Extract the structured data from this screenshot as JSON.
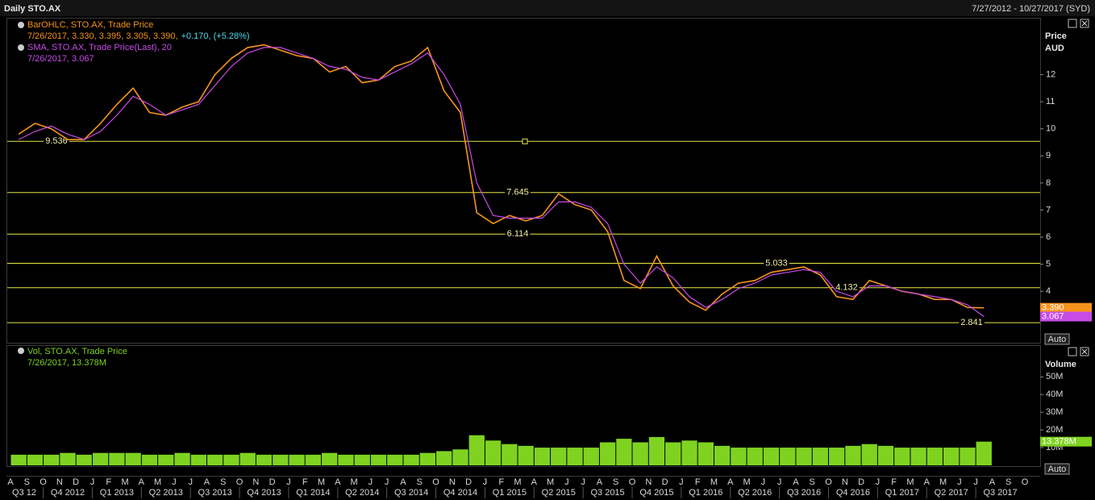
{
  "header": {
    "title": "Daily STO.AX",
    "range": "7/27/2012 - 10/27/2017 (SYD)"
  },
  "chart_data": [
    {
      "type": "line",
      "ylabel": "Price",
      "yunit": "AUD",
      "scale_button": "Auto",
      "ylim": [
        2.1,
        14.1
      ],
      "yticks": [
        4,
        5,
        6,
        7,
        8,
        9,
        10,
        11,
        12
      ],
      "levels": [
        9.536,
        7.645,
        6.114,
        5.033,
        4.132,
        2.841
      ],
      "level_color": "#e8e84a",
      "badges": [
        "3.390",
        "3.067"
      ],
      "series": [
        {
          "name": "BarOHLC, STO.AX, Trade Price",
          "detail": "7/26/2017, 3.330, 3.395, 3.305, 3.390,",
          "change": "+0.170, (+5.28%)",
          "color": "#f7941d",
          "values": [
            9.8,
            10.2,
            10.0,
            9.6,
            9.6,
            10.2,
            10.9,
            11.5,
            10.6,
            10.5,
            10.8,
            11.0,
            12.0,
            12.6,
            13.0,
            13.1,
            12.9,
            12.7,
            12.6,
            12.1,
            12.3,
            11.7,
            11.8,
            12.3,
            12.5,
            13.0,
            11.4,
            10.6,
            6.9,
            6.5,
            6.8,
            6.6,
            6.8,
            7.6,
            7.2,
            7.0,
            6.2,
            4.4,
            4.1,
            5.3,
            4.2,
            3.6,
            3.3,
            3.9,
            4.3,
            4.4,
            4.7,
            4.8,
            4.9,
            4.6,
            3.8,
            3.7,
            4.4,
            4.2,
            4.0,
            3.9,
            3.7,
            3.7,
            3.4,
            3.39,
            null,
            null,
            null
          ]
        },
        {
          "name": "SMA, STO.AX, Trade Price(Last),  20",
          "detail": "7/26/2017, 3.067",
          "color": "#c84be8",
          "values": [
            9.6,
            9.9,
            10.1,
            9.8,
            9.6,
            9.9,
            10.5,
            11.2,
            10.9,
            10.5,
            10.7,
            10.9,
            11.6,
            12.3,
            12.8,
            13.0,
            13.0,
            12.8,
            12.6,
            12.3,
            12.2,
            11.9,
            11.8,
            12.1,
            12.4,
            12.8,
            12.0,
            10.9,
            8.0,
            6.8,
            6.7,
            6.7,
            6.7,
            7.3,
            7.3,
            7.1,
            6.5,
            5.0,
            4.3,
            4.9,
            4.5,
            3.8,
            3.4,
            3.7,
            4.1,
            4.3,
            4.6,
            4.7,
            4.8,
            4.7,
            4.0,
            3.8,
            4.2,
            4.2,
            4.0,
            3.9,
            3.8,
            3.7,
            3.5,
            3.067,
            null,
            null,
            null
          ]
        }
      ]
    },
    {
      "type": "bar",
      "ylabel": "Volume",
      "scale_button": "Auto",
      "badge": "13.378M",
      "ylim": [
        0,
        67
      ],
      "yticks": [
        {
          "value": 10,
          "label": "10M"
        },
        {
          "value": 20,
          "label": "20M"
        },
        {
          "value": 30,
          "label": "30M"
        },
        {
          "value": 40,
          "label": "40M"
        },
        {
          "value": 50,
          "label": "50M"
        }
      ],
      "categories": [
        "A",
        "S",
        "O",
        "N",
        "D",
        "J",
        "F",
        "M",
        "A",
        "M",
        "J",
        "J",
        "A",
        "S",
        "O",
        "N",
        "D",
        "J",
        "F",
        "M",
        "A",
        "M",
        "J",
        "J",
        "A",
        "S",
        "O",
        "N",
        "D",
        "J",
        "F",
        "M",
        "A",
        "M",
        "J",
        "J",
        "A",
        "S",
        "O",
        "N",
        "D",
        "J",
        "F",
        "M",
        "A",
        "M",
        "J",
        "J",
        "A",
        "S",
        "O",
        "N",
        "D",
        "J",
        "F",
        "M",
        "A",
        "M",
        "J",
        "J",
        "A",
        "S",
        "O"
      ],
      "quarters": [
        "Q3 12",
        "Q4 2012",
        "Q1 2013",
        "Q2 2013",
        "Q3 2013",
        "Q4 2013",
        "Q1 2014",
        "Q2 2014",
        "Q3 2014",
        "Q4 2014",
        "Q1 2015",
        "Q2 2015",
        "Q3 2015",
        "Q4 2015",
        "Q1 2016",
        "Q2 2016",
        "Q3 2016",
        "Q4 2016",
        "Q1 2017",
        "Q2 2017",
        "Q3 2017"
      ],
      "series": [
        {
          "name": "Vol, STO.AX, Trade Price",
          "detail": "7/26/2017, 13.378M",
          "color": "#7fd320",
          "values": [
            6,
            6,
            6,
            7,
            6,
            7,
            7,
            7,
            6,
            6,
            7,
            6,
            6,
            6,
            7,
            6,
            6,
            6,
            6,
            7,
            6,
            6,
            6,
            6,
            6,
            7,
            8,
            9,
            17,
            14,
            12,
            11,
            10,
            10,
            10,
            10,
            13,
            15,
            13,
            16,
            13,
            14,
            13,
            11,
            10,
            10,
            10,
            10,
            10,
            10,
            10,
            11,
            12,
            11,
            10,
            10,
            10,
            10,
            10,
            13.378,
            null,
            null,
            null
          ]
        }
      ]
    }
  ]
}
